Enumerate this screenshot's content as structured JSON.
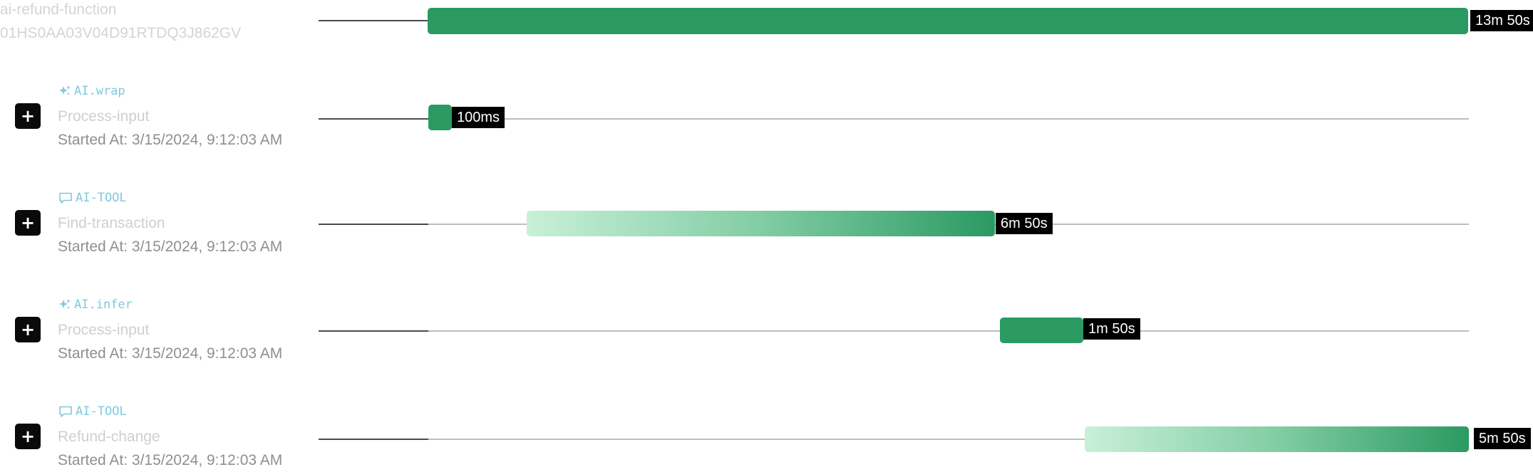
{
  "trace": {
    "name": "ai-refund-function",
    "id": "01HS0AA03V04D91RTDQ3J862GV",
    "duration": "13m 50s"
  },
  "spans": [
    {
      "type": "AI.wrap",
      "type_icon": "sparkles-icon",
      "name": "Process-input",
      "started_label": "Started At: 3/15/2024, 9:12:03 AM",
      "duration": "100ms",
      "expand_label": "+"
    },
    {
      "type": "AI-TOOL",
      "type_icon": "chat-bubble-icon",
      "name": "Find-transaction",
      "started_label": "Started At: 3/15/2024, 9:12:03 AM",
      "duration": "6m 50s",
      "expand_label": "+"
    },
    {
      "type": "AI.infer",
      "type_icon": "sparkles-icon",
      "name": "Process-input",
      "started_label": "Started At: 3/15/2024, 9:12:03 AM",
      "duration": "1m 50s",
      "expand_label": "+"
    },
    {
      "type": "AI-TOOL",
      "type_icon": "chat-bubble-icon",
      "name": "Refund-change",
      "started_label": "Started At: 3/15/2024, 9:12:03 AM",
      "duration": "5m 50s",
      "expand_label": "+"
    }
  ],
  "colors": {
    "bar_green": "#2b9a62",
    "bar_light_green": "#c8f0d8",
    "type_label": "#7fc8de",
    "expand_button": "#0a0a0a"
  }
}
